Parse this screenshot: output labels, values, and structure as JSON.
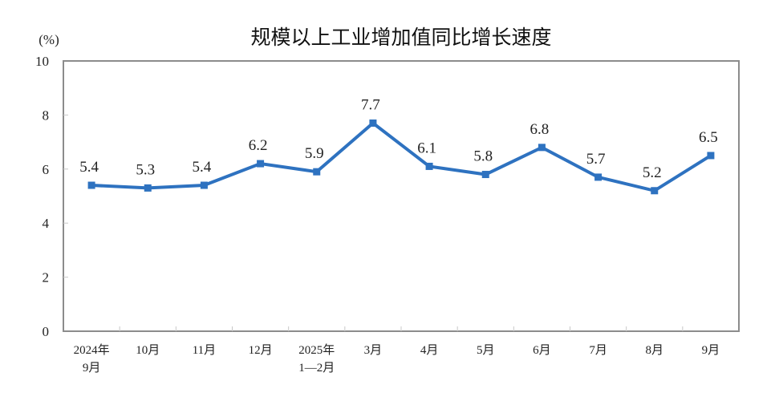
{
  "chart_data": {
    "type": "line",
    "title": "规模以上工业增加值同比增长速度",
    "xlabel": "",
    "ylabel": "(%)",
    "ylim": [
      0,
      10
    ],
    "yticks": [
      0,
      2,
      4,
      6,
      8,
      10
    ],
    "grid": false,
    "legend": null,
    "categories": [
      "2024年9月",
      "10月",
      "11月",
      "12月",
      "2025年1—2月",
      "3月",
      "4月",
      "5月",
      "6月",
      "7月",
      "8月",
      "9月"
    ],
    "category_lines": [
      [
        "2024年",
        "9月"
      ],
      [
        "10月"
      ],
      [
        "11月"
      ],
      [
        "12月"
      ],
      [
        "2025年",
        "1—2月"
      ],
      [
        "3月"
      ],
      [
        "4月"
      ],
      [
        "5月"
      ],
      [
        "6月"
      ],
      [
        "7月"
      ],
      [
        "8月"
      ],
      [
        "9月"
      ]
    ],
    "series": [
      {
        "name": "规模以上工业增加值同比增长速度",
        "values": [
          5.4,
          5.3,
          5.4,
          6.2,
          5.9,
          7.7,
          6.1,
          5.8,
          6.8,
          5.7,
          5.2,
          6.5
        ],
        "labels": [
          "5.4",
          "5.3",
          "5.4",
          "6.2",
          "5.9",
          "7.7",
          "6.1",
          "5.8",
          "6.8",
          "5.7",
          "5.2",
          "6.5"
        ],
        "color": "#2E72C0",
        "marker": "square"
      }
    ]
  },
  "colors": {
    "line": "#2E72C0",
    "axis": "#8c8c8c",
    "tick": "#c8c8c8",
    "text": "#222222"
  }
}
